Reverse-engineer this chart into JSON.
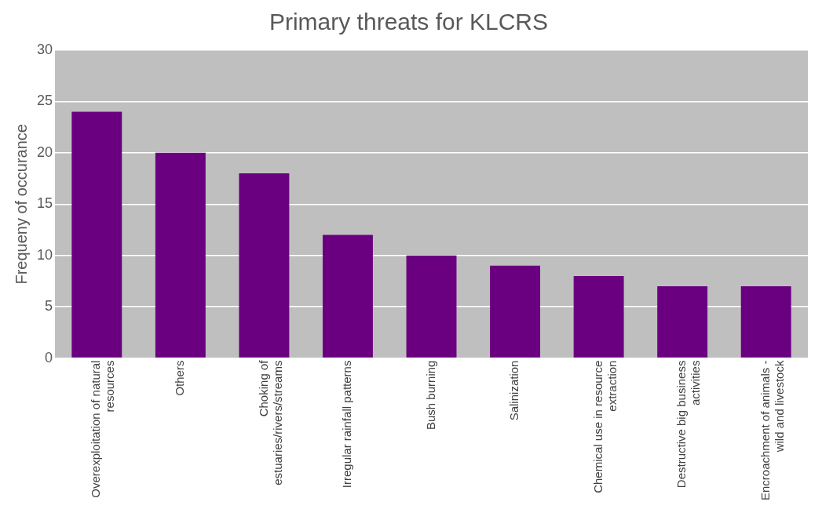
{
  "chart_data": {
    "type": "bar",
    "title": "Primary threats for KLCRS",
    "ylabel": "Frequeny of occurance",
    "categories": [
      "Overexploitation of natural resources",
      "Others",
      "Choking of estuaries/rivers/streams",
      "Irregular rainfall patterns",
      "Bush burning",
      "Salinization",
      "Chemical use in resource extraction",
      "Destructive big business activities",
      "Encroachment of animals - wild and livestock"
    ],
    "values": [
      24,
      20,
      18,
      12,
      10,
      9,
      8,
      7,
      7
    ],
    "color": "#6a0080",
    "ylim": [
      0,
      30
    ],
    "yticks": [
      0,
      5,
      10,
      15,
      20,
      25,
      30
    ],
    "grid": "y",
    "legend": false
  }
}
